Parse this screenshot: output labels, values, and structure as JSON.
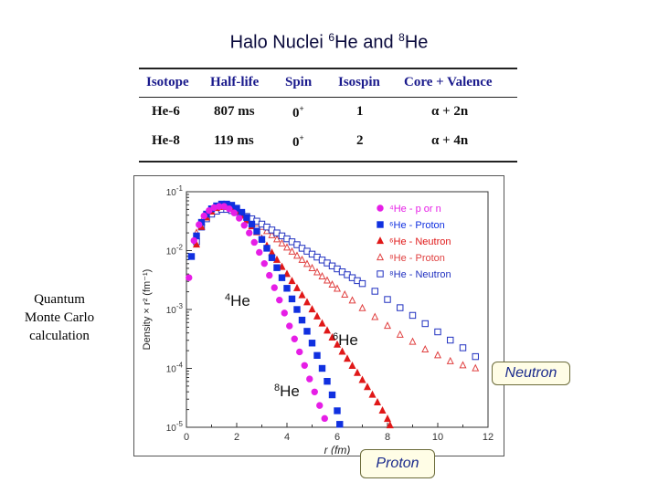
{
  "slide": {
    "title": {
      "prefix": "Halo Nuclei ",
      "sup1": "6",
      "mid": "He and ",
      "sup2": "8",
      "suffix": "He"
    },
    "side_note": [
      "Quantum",
      "Monte Carlo",
      "calculation"
    ]
  },
  "table": {
    "headers": [
      "Isotope",
      "Half-life",
      "Spin",
      "Isospin",
      "Core + Valence"
    ],
    "rows": [
      {
        "isotope": "He-6",
        "half_life": "807 ms",
        "spin": "0",
        "spin_sup": "+",
        "isospin": "1",
        "core_valence": "α + 2n"
      },
      {
        "isotope": "He-8",
        "half_life": "119 ms",
        "spin": "0",
        "spin_sup": "+",
        "isospin": "2",
        "core_valence": "α + 4n"
      }
    ]
  },
  "callouts": {
    "neutron": "Neutron",
    "proton": "Proton"
  },
  "chart_data": {
    "type": "scatter",
    "xlabel": "r (fm)",
    "ylabel": "Density × r² (fm⁻¹)",
    "xlim": [
      0,
      12
    ],
    "ylim_log10": [
      -5,
      -1
    ],
    "x_ticks": [
      "0",
      "2",
      "4",
      "6",
      "8",
      "10",
      "12"
    ],
    "y_ticks": [
      {
        "base": "10",
        "exp": "-1"
      },
      {
        "base": "10",
        "exp": "-2"
      },
      {
        "base": "10",
        "exp": "-3"
      },
      {
        "base": "10",
        "exp": "-4"
      },
      {
        "base": "10",
        "exp": "-5"
      }
    ],
    "legend": [
      "⁴He - p or n",
      "⁶He - Proton",
      "⁶He - Neutron",
      "⁸He - Proton",
      "⁸He - Neutron"
    ],
    "curve_labels": [
      {
        "sup": "4",
        "text": "He"
      },
      {
        "sup": "6",
        "text": "He"
      },
      {
        "sup": "8",
        "text": "He"
      }
    ],
    "series": [
      {
        "name": "⁴He - p or n",
        "color": "#e61ee6",
        "marker": "circle-filled",
        "points": [
          [
            0.1,
            -2.46
          ],
          [
            0.3,
            -1.83
          ],
          [
            0.5,
            -1.56
          ],
          [
            0.7,
            -1.41
          ],
          [
            0.9,
            -1.32
          ],
          [
            1.1,
            -1.27
          ],
          [
            1.3,
            -1.25
          ],
          [
            1.5,
            -1.25
          ],
          [
            1.7,
            -1.29
          ],
          [
            1.9,
            -1.36
          ],
          [
            2.1,
            -1.45
          ],
          [
            2.3,
            -1.57
          ],
          [
            2.5,
            -1.7
          ],
          [
            2.7,
            -1.86
          ],
          [
            2.9,
            -2.03
          ],
          [
            3.1,
            -2.22
          ],
          [
            3.3,
            -2.42
          ],
          [
            3.5,
            -2.63
          ],
          [
            3.7,
            -2.84
          ],
          [
            3.9,
            -3.06
          ],
          [
            4.1,
            -3.28
          ],
          [
            4.3,
            -3.5
          ],
          [
            4.5,
            -3.72
          ],
          [
            4.7,
            -3.95
          ],
          [
            4.9,
            -4.18
          ],
          [
            5.1,
            -4.4
          ],
          [
            5.3,
            -4.63
          ],
          [
            5.5,
            -4.85
          ]
        ]
      },
      {
        "name": "⁸He - Proton",
        "color": "#1030e0",
        "marker": "square-filled",
        "points": [
          [
            0.2,
            -2.1
          ],
          [
            0.4,
            -1.75
          ],
          [
            0.6,
            -1.52
          ],
          [
            0.8,
            -1.38
          ],
          [
            1.0,
            -1.29
          ],
          [
            1.2,
            -1.24
          ],
          [
            1.4,
            -1.21
          ],
          [
            1.6,
            -1.21
          ],
          [
            1.8,
            -1.23
          ],
          [
            2.0,
            -1.28
          ],
          [
            2.2,
            -1.35
          ],
          [
            2.4,
            -1.44
          ],
          [
            2.6,
            -1.55
          ],
          [
            2.8,
            -1.67
          ],
          [
            3.0,
            -1.81
          ],
          [
            3.2,
            -1.96
          ],
          [
            3.4,
            -2.12
          ],
          [
            3.6,
            -2.29
          ],
          [
            3.8,
            -2.46
          ],
          [
            4.0,
            -2.64
          ],
          [
            4.2,
            -2.82
          ],
          [
            4.4,
            -3.0
          ],
          [
            4.6,
            -3.18
          ],
          [
            4.8,
            -3.37
          ],
          [
            5.0,
            -3.57
          ],
          [
            5.2,
            -3.78
          ],
          [
            5.4,
            -4.0
          ],
          [
            5.6,
            -4.22
          ],
          [
            5.8,
            -4.45
          ],
          [
            6.0,
            -4.72
          ],
          [
            6.1,
            -4.95
          ]
        ]
      },
      {
        "name": "⁶He - Proton",
        "color": "#e01818",
        "marker": "triangle-filled",
        "points": [
          [
            0.4,
            -1.9
          ],
          [
            0.6,
            -1.6
          ],
          [
            0.8,
            -1.44
          ],
          [
            1.0,
            -1.34
          ],
          [
            1.2,
            -1.28
          ],
          [
            1.4,
            -1.26
          ],
          [
            1.6,
            -1.26
          ],
          [
            1.8,
            -1.29
          ],
          [
            2.0,
            -1.34
          ],
          [
            2.2,
            -1.41
          ],
          [
            2.4,
            -1.49
          ],
          [
            2.6,
            -1.59
          ],
          [
            2.8,
            -1.69
          ],
          [
            3.0,
            -1.8
          ],
          [
            3.2,
            -1.92
          ],
          [
            3.4,
            -2.04
          ],
          [
            3.6,
            -2.16
          ],
          [
            3.8,
            -2.28
          ],
          [
            4.0,
            -2.4
          ],
          [
            4.2,
            -2.52
          ],
          [
            4.4,
            -2.64
          ],
          [
            4.6,
            -2.76
          ],
          [
            4.8,
            -2.88
          ],
          [
            5.0,
            -3.0
          ],
          [
            5.2,
            -3.12
          ],
          [
            5.4,
            -3.24
          ],
          [
            5.6,
            -3.36
          ],
          [
            5.8,
            -3.48
          ],
          [
            6.0,
            -3.6
          ],
          [
            6.2,
            -3.72
          ],
          [
            6.4,
            -3.84
          ],
          [
            6.6,
            -3.96
          ],
          [
            6.8,
            -4.08
          ],
          [
            7.0,
            -4.2
          ],
          [
            7.2,
            -4.32
          ],
          [
            7.4,
            -4.45
          ],
          [
            7.6,
            -4.58
          ],
          [
            7.8,
            -4.72
          ],
          [
            8.0,
            -4.86
          ],
          [
            8.1,
            -4.97
          ]
        ]
      },
      {
        "name": "⁶He - Neutron",
        "color": "#e04040",
        "marker": "triangle-open",
        "points": [
          [
            0.4,
            -1.7
          ],
          [
            0.6,
            -1.52
          ],
          [
            0.8,
            -1.42
          ],
          [
            1.0,
            -1.35
          ],
          [
            1.2,
            -1.31
          ],
          [
            1.4,
            -1.29
          ],
          [
            1.6,
            -1.29
          ],
          [
            1.8,
            -1.31
          ],
          [
            2.0,
            -1.34
          ],
          [
            2.2,
            -1.38
          ],
          [
            2.4,
            -1.43
          ],
          [
            2.6,
            -1.48
          ],
          [
            2.8,
            -1.54
          ],
          [
            3.0,
            -1.6
          ],
          [
            3.2,
            -1.67
          ],
          [
            3.4,
            -1.74
          ],
          [
            3.6,
            -1.81
          ],
          [
            3.8,
            -1.88
          ],
          [
            4.0,
            -1.95
          ],
          [
            4.2,
            -2.02
          ],
          [
            4.4,
            -2.09
          ],
          [
            4.6,
            -2.16
          ],
          [
            4.8,
            -2.23
          ],
          [
            5.0,
            -2.3
          ],
          [
            5.2,
            -2.37
          ],
          [
            5.4,
            -2.44
          ],
          [
            5.6,
            -2.51
          ],
          [
            5.8,
            -2.58
          ],
          [
            6.0,
            -2.65
          ],
          [
            6.3,
            -2.75
          ],
          [
            6.6,
            -2.85
          ],
          [
            7.0,
            -2.98
          ],
          [
            7.5,
            -3.13
          ],
          [
            8.0,
            -3.28
          ],
          [
            8.5,
            -3.43
          ],
          [
            9.0,
            -3.55
          ],
          [
            9.5,
            -3.68
          ],
          [
            10.0,
            -3.78
          ],
          [
            10.5,
            -3.88
          ],
          [
            11.0,
            -3.95
          ],
          [
            11.5,
            -4.0
          ]
        ]
      },
      {
        "name": "⁸He - Neutron",
        "color": "#2030c0",
        "marker": "square-open",
        "points": [
          [
            0.4,
            -1.85
          ],
          [
            0.6,
            -1.6
          ],
          [
            0.8,
            -1.46
          ],
          [
            1.0,
            -1.38
          ],
          [
            1.2,
            -1.33
          ],
          [
            1.4,
            -1.3
          ],
          [
            1.6,
            -1.3
          ],
          [
            1.8,
            -1.32
          ],
          [
            2.0,
            -1.35
          ],
          [
            2.2,
            -1.38
          ],
          [
            2.4,
            -1.42
          ],
          [
            2.6,
            -1.46
          ],
          [
            2.8,
            -1.5
          ],
          [
            3.0,
            -1.55
          ],
          [
            3.2,
            -1.6
          ],
          [
            3.4,
            -1.65
          ],
          [
            3.6,
            -1.7
          ],
          [
            3.8,
            -1.75
          ],
          [
            4.0,
            -1.8
          ],
          [
            4.2,
            -1.85
          ],
          [
            4.4,
            -1.9
          ],
          [
            4.6,
            -1.96
          ],
          [
            4.8,
            -2.01
          ],
          [
            5.0,
            -2.06
          ],
          [
            5.2,
            -2.11
          ],
          [
            5.4,
            -2.16
          ],
          [
            5.6,
            -2.21
          ],
          [
            5.8,
            -2.26
          ],
          [
            6.0,
            -2.31
          ],
          [
            6.2,
            -2.36
          ],
          [
            6.4,
            -2.41
          ],
          [
            6.6,
            -2.46
          ],
          [
            6.8,
            -2.51
          ],
          [
            7.0,
            -2.56
          ],
          [
            7.5,
            -2.69
          ],
          [
            8.0,
            -2.83
          ],
          [
            8.5,
            -2.97
          ],
          [
            9.0,
            -3.1
          ],
          [
            9.5,
            -3.24
          ],
          [
            10.0,
            -3.38
          ],
          [
            10.5,
            -3.52
          ],
          [
            11.0,
            -3.65
          ],
          [
            11.5,
            -3.8
          ]
        ]
      }
    ]
  }
}
